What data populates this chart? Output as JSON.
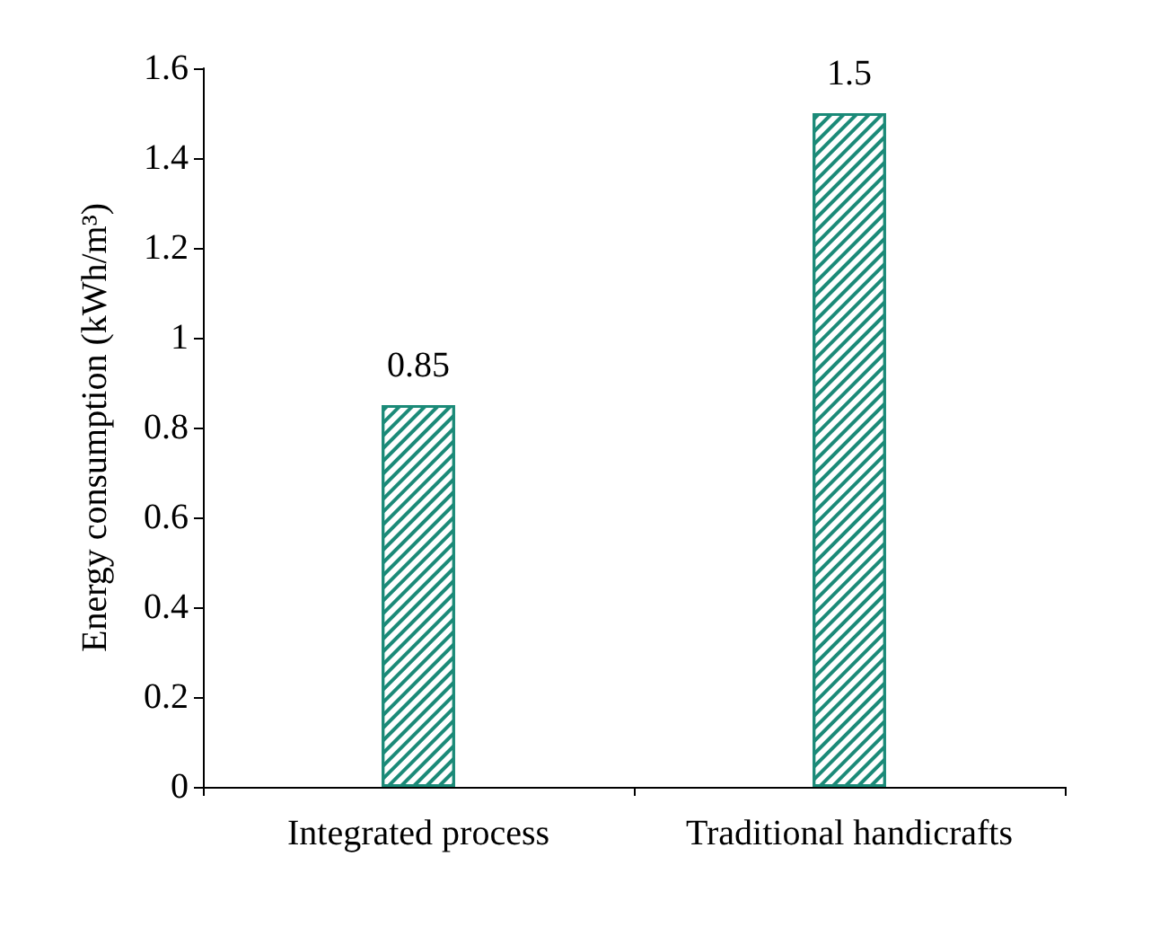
{
  "chart_data": {
    "type": "bar",
    "ylabel": "Energy consumption (kWh/m³)",
    "categories": [
      "Integrated process",
      "Traditional handicrafts"
    ],
    "values": [
      0.85,
      1.5
    ],
    "color": "#1b8a78",
    "ylim": [
      0,
      1.6
    ],
    "yticks": [
      0,
      0.2,
      0.4,
      0.6,
      0.8,
      1,
      1.2,
      1.4,
      1.6
    ],
    "grid": false,
    "data_labels": true
  }
}
